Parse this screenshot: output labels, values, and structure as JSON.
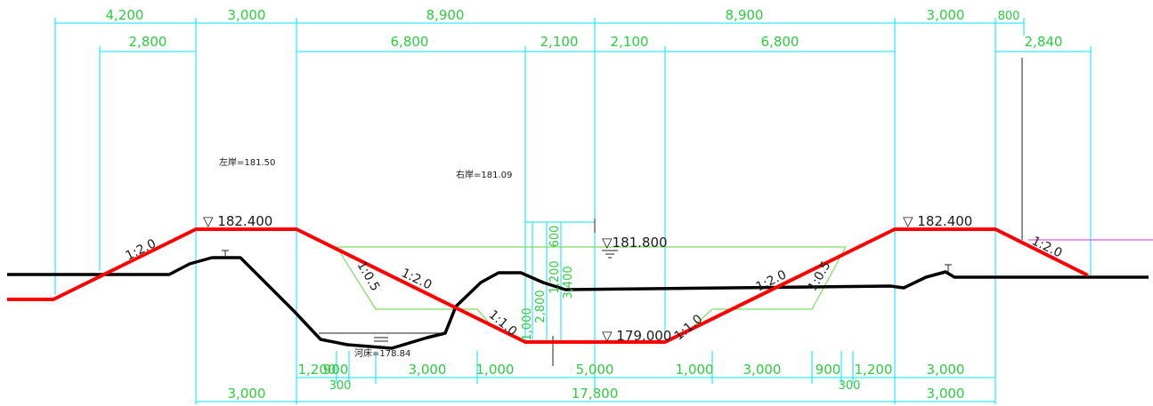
{
  "top_dims": {
    "row1": [
      "4,200",
      "3,000",
      "8,900",
      "8,900",
      "3,000",
      "800"
    ],
    "row2": [
      "2,800",
      "6,800",
      "2,100",
      "2,100",
      "6,800",
      "2,840"
    ]
  },
  "bottom_dims": {
    "row1": [
      "1,200",
      "900",
      "3,000",
      "1,000",
      "5,000",
      "1,000",
      "3,000",
      "900",
      "1,200",
      "3,000"
    ],
    "row1_small": [
      "300",
      "300"
    ],
    "row2": [
      "3,000",
      "17,800",
      "3,000"
    ]
  },
  "vertical_dims": [
    "600",
    "1,200",
    "2,800",
    "3,400",
    "1,000"
  ],
  "slopes": {
    "left_outer": "1:2.0",
    "left_inner": "1:2.0",
    "left_green": "1:0.5",
    "left_bottom": "1:1.0",
    "right_bottom": "1:1.0",
    "right_inner": "1:2.0",
    "right_green": "1:0.5",
    "right_outer": "1:2.0"
  },
  "elevations": {
    "left_bank_top": "▽ 182.400",
    "right_bank_top": "▽ 182.400",
    "water_level": "▽181.800",
    "channel_bottom": "▽ 179.000"
  },
  "notes": {
    "left_bank": "左岸=181.50",
    "right_bank": "右岸=181.09",
    "river_bed": "河床=178.84"
  },
  "colors": {
    "design_section": "#ff0000",
    "existing_ground": "#000000",
    "dimension_lines": "#00e5ff",
    "dimension_text": "#2ecc40",
    "green_lines": "#7fdc60",
    "magenta_line": "#e05be0"
  }
}
